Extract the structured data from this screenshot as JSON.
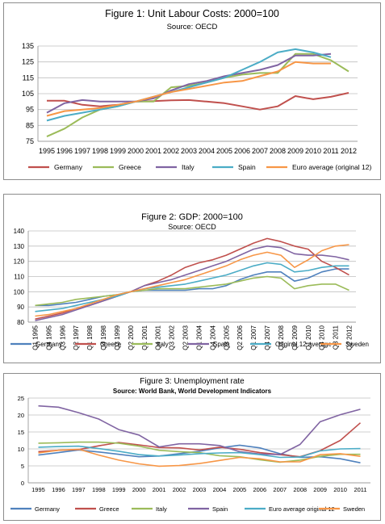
{
  "chart_data": [
    {
      "type": "line",
      "title": "Figure 1: Unit Labour Costs: 2000=100",
      "subtitle": "Source: OECD",
      "xlabel": "",
      "ylabel": "",
      "x": [
        "1995",
        "1996",
        "1997",
        "1998",
        "1999",
        "2000",
        "2001",
        "2002",
        "2003",
        "2004",
        "2005",
        "2006",
        "2007",
        "2008",
        "2009",
        "2010",
        "2011",
        "2012"
      ],
      "yticks": [
        75,
        85,
        95,
        105,
        115,
        125,
        135
      ],
      "ylim": [
        75,
        135
      ],
      "grid": "horizontal",
      "legend_position": "bottom",
      "series": [
        {
          "name": "Germany",
          "color": "#c0504d",
          "values": [
            100.5,
            100.5,
            98,
            97,
            98,
            100,
            100.3,
            100.8,
            101,
            100,
            99,
            97,
            95,
            97,
            103.5,
            101.5,
            103,
            105.5
          ]
        },
        {
          "name": "Greece",
          "color": "#9bbb59",
          "values": [
            78,
            83,
            90,
            95,
            97,
            100,
            100,
            109,
            110,
            112,
            115,
            117,
            118,
            118,
            130,
            130,
            126,
            119
          ]
        },
        {
          "name": "Italy",
          "color": "#8064a2",
          "values": [
            93,
            99,
            101,
            100,
            100,
            100,
            102,
            107,
            111,
            113,
            116,
            118,
            120,
            123,
            129,
            129,
            130,
            null
          ]
        },
        {
          "name": "Spain",
          "color": "#4bacc6",
          "values": [
            88,
            91,
            93,
            95,
            97,
            100,
            103,
            106,
            109,
            112,
            115,
            120,
            125,
            131,
            133,
            131,
            128,
            null
          ]
        },
        {
          "name": "Euro average (original 12)",
          "color": "#f79646",
          "values": [
            91,
            94,
            95,
            96,
            98,
            100,
            103,
            106,
            108,
            110,
            112,
            113,
            116,
            119,
            125,
            124,
            124,
            null
          ]
        }
      ]
    },
    {
      "type": "line",
      "title": "Figure 2: GDP: 2000=100",
      "subtitle": "Source: OECD",
      "xlabel": "",
      "ylabel": "",
      "x": [
        "Q1 1995",
        "Q4 1995",
        "Q3 1996",
        "Q2 1997",
        "Q1 1998",
        "Q4 1998",
        "Q3 1999",
        "Q2 2000",
        "Q1 2001",
        "Q4 2001",
        "Q3 2002",
        "Q2 2003",
        "Q1 2004",
        "Q4 2004",
        "Q3 2005",
        "Q2 2006",
        "Q1 2007",
        "Q4 2007",
        "Q3 2008",
        "Q2 2009",
        "Q1 2010",
        "Q4 2010",
        "Q3 2011",
        "Q2 2012"
      ],
      "yticks": [
        80,
        90,
        100,
        110,
        120,
        130,
        140
      ],
      "ylim": [
        80,
        140
      ],
      "grid": "horizontal",
      "legend_position": "bottom",
      "series": [
        {
          "name": "Germany",
          "color": "#4f81bd",
          "values": [
            91,
            91,
            92,
            93,
            95,
            97,
            98,
            100,
            101,
            101,
            101,
            101,
            102,
            102,
            104,
            108,
            111,
            113,
            113,
            107,
            109,
            113,
            115,
            115
          ]
        },
        {
          "name": "Greece",
          "color": "#c0504d",
          "values": [
            82,
            84,
            86,
            89,
            91,
            94,
            97,
            100,
            104,
            107,
            111,
            116,
            119,
            121,
            124,
            128,
            132,
            135,
            133,
            130,
            128,
            120,
            116,
            111
          ]
        },
        {
          "name": "Italy",
          "color": "#9bbb59",
          "values": [
            91,
            92,
            93,
            95,
            96,
            97,
            98,
            100,
            101,
            102,
            102,
            102,
            103,
            104,
            105,
            107,
            109,
            110,
            109,
            102,
            104,
            105,
            105,
            101
          ]
        },
        {
          "name": "Spain",
          "color": "#8064a2",
          "values": [
            81,
            83,
            85,
            88,
            91,
            94,
            97,
            100,
            104,
            106,
            108,
            111,
            114,
            117,
            120,
            124,
            128,
            130,
            129,
            125,
            124,
            124,
            123,
            121
          ]
        },
        {
          "name": "Original 12 average",
          "color": "#4bacc6",
          "values": [
            87,
            88,
            89,
            91,
            93,
            95,
            97,
            100,
            102,
            103,
            104,
            105,
            107,
            109,
            111,
            114,
            117,
            119,
            118,
            113,
            114,
            116,
            117,
            117
          ]
        },
        {
          "name": "Sweden",
          "color": "#f79646",
          "values": [
            84,
            85,
            87,
            89,
            92,
            95,
            98,
            100,
            102,
            104,
            106,
            108,
            111,
            114,
            117,
            121,
            124,
            126,
            124,
            116,
            121,
            127,
            130,
            131
          ]
        }
      ]
    },
    {
      "type": "line",
      "title": "Figure 3: Unemployment rate",
      "subtitle": "Source: World Bank, World Development Indicators",
      "xlabel": "",
      "ylabel": "",
      "x": [
        "1995",
        "1996",
        "1997",
        "1998",
        "1999",
        "2000",
        "2001",
        "2002",
        "2003",
        "2004",
        "2005",
        "2006",
        "2007",
        "2008",
        "2009",
        "2010",
        "2011"
      ],
      "yticks": [
        0,
        5,
        10,
        15,
        20,
        25
      ],
      "ylim": [
        0,
        25
      ],
      "grid": "horizontal",
      "legend_position": "bottom",
      "series": [
        {
          "name": "Germany",
          "color": "#4f81bd",
          "values": [
            8.2,
            8.9,
            9.7,
            9.1,
            8.4,
            7.7,
            7.9,
            8.6,
            9.3,
            10.3,
            11.1,
            10.3,
            8.6,
            7.5,
            7.7,
            7.1,
            5.9
          ]
        },
        {
          "name": "Greece",
          "color": "#c0504d",
          "values": [
            9.2,
            9.6,
            9.8,
            10.9,
            11.9,
            11.2,
            10.4,
            10.3,
            9.7,
            10.5,
            9.9,
            8.9,
            8.3,
            7.7,
            9.5,
            12.5,
            17.7
          ]
        },
        {
          "name": "Italy",
          "color": "#9bbb59",
          "values": [
            11.7,
            11.8,
            12.0,
            12.0,
            11.7,
            10.8,
            9.6,
            9.2,
            8.9,
            8.0,
            7.7,
            6.8,
            6.1,
            6.7,
            7.8,
            8.4,
            8.4
          ]
        },
        {
          "name": "Spain",
          "color": "#8064a2",
          "values": [
            22.7,
            22.3,
            20.7,
            18.8,
            15.7,
            14.1,
            10.6,
            11.5,
            11.5,
            11.0,
            9.2,
            8.5,
            8.3,
            11.3,
            18.0,
            20.1,
            21.7
          ]
        },
        {
          "name": "Euro average original 12",
          "color": "#4bacc6",
          "values": [
            10.5,
            10.7,
            10.8,
            10.1,
            9.3,
            8.3,
            7.9,
            8.2,
            8.6,
            8.8,
            8.9,
            8.3,
            7.5,
            7.6,
            9.4,
            10.0,
            10.1
          ]
        },
        {
          "name": "Sweden",
          "color": "#f79646",
          "values": [
            8.8,
            9.6,
            9.9,
            8.2,
            6.7,
            5.6,
            4.9,
            5.1,
            5.7,
            6.6,
            7.5,
            7.1,
            6.2,
            6.2,
            8.3,
            8.6,
            7.8
          ]
        }
      ]
    }
  ]
}
